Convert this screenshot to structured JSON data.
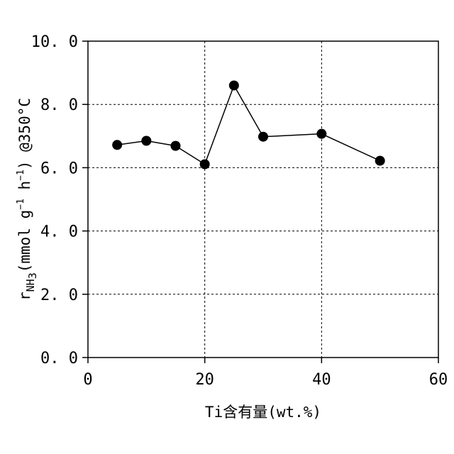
{
  "chart_data": {
    "type": "line",
    "title": "",
    "xlabel": "Ti含有量(wt.%)",
    "ylabel": {
      "base": "r",
      "sub": "NH",
      "sub_num": "3",
      "unit_open": "(mmol g",
      "exp1": "−1",
      "mid": " h",
      "exp2": "−1",
      "unit_close": ")",
      "condition": "  @350°C"
    },
    "xlim": [
      0,
      60
    ],
    "ylim": [
      0,
      10
    ],
    "x_ticks": [
      0,
      20,
      40,
      60
    ],
    "y_ticks": [
      0,
      2,
      4,
      6,
      8,
      10
    ],
    "x_tick_labels": [
      "0",
      "20",
      "40",
      "60"
    ],
    "y_tick_labels": [
      "0. 0",
      "2. 0",
      "4. 0",
      "6. 0",
      "8. 0",
      "10. 0"
    ],
    "grid": true,
    "series": [
      {
        "x": [
          5,
          10,
          15,
          20,
          25,
          30,
          40,
          50
        ],
        "y": [
          6.72,
          6.85,
          6.69,
          6.11,
          8.6,
          6.98,
          7.07,
          6.22
        ],
        "color": "#000000",
        "marker": "circle"
      }
    ]
  }
}
